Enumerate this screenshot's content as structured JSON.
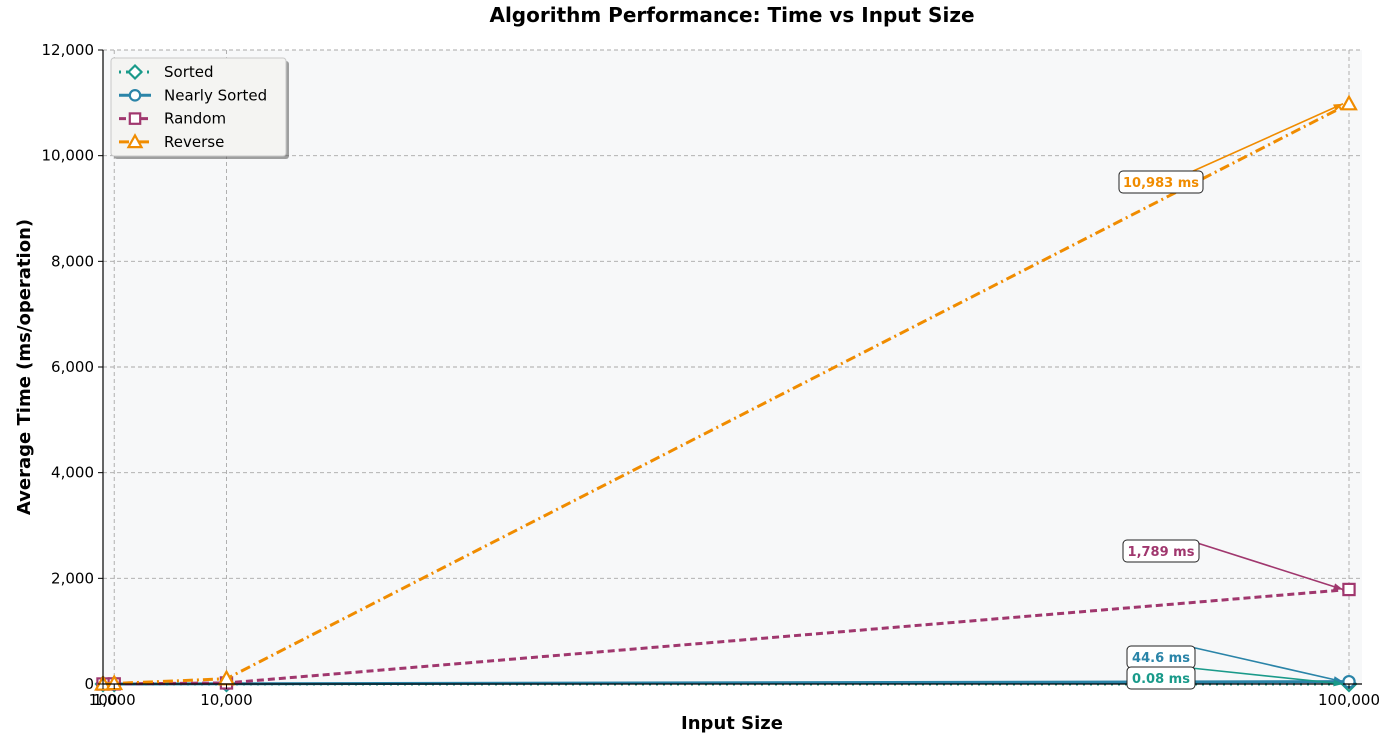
{
  "chart_data": {
    "type": "line",
    "title": "Algorithm Performance: Time vs Input Size",
    "xlabel": "Input Size",
    "ylabel": "Average Time (ms/operation)",
    "x": [
      100,
      1000,
      10000,
      100000
    ],
    "x_tick_labels": [
      "100",
      "1,000",
      "10,000",
      "100,000"
    ],
    "xlim": [
      100,
      100000
    ],
    "ylim": [
      0,
      12000
    ],
    "y_ticks": [
      0,
      2000,
      4000,
      6000,
      8000,
      10000,
      12000
    ],
    "y_tick_labels": [
      "0",
      "2,000",
      "4,000",
      "6,000",
      "8,000",
      "10,000",
      "12,000"
    ],
    "grid": true,
    "legend_position": "top-left",
    "series": [
      {
        "name": "Sorted",
        "values": [
          0.0001,
          0.0008,
          0.008,
          0.08
        ],
        "color": "#1a9a8a",
        "marker": "diamond",
        "dash": "dotted"
      },
      {
        "name": "Nearly Sorted",
        "values": [
          0.05,
          0.45,
          4.5,
          44.6
        ],
        "color": "#2a84a8",
        "marker": "circle",
        "dash": "solid"
      },
      {
        "name": "Random",
        "values": [
          0.2,
          2,
          20,
          1789
        ],
        "color": "#a0376e",
        "marker": "square",
        "dash": "dashed"
      },
      {
        "name": "Reverse",
        "values": [
          1,
          10,
          100,
          10983
        ],
        "color": "#f08c00",
        "marker": "triangle",
        "dash": "dashdot"
      }
    ],
    "annotations": [
      {
        "text": "10,983 ms",
        "series": "Reverse",
        "x": 100000,
        "y": 10983,
        "color": "#f08c00"
      },
      {
        "text": "1,789 ms",
        "series": "Random",
        "x": 100000,
        "y": 1789,
        "color": "#a0376e"
      },
      {
        "text": "44.6 ms",
        "series": "Nearly Sorted",
        "x": 100000,
        "y": 44.6,
        "color": "#2a84a8"
      },
      {
        "text": "0.08 ms",
        "series": "Sorted",
        "x": 100000,
        "y": 0.08,
        "color": "#1a9a8a"
      }
    ]
  }
}
